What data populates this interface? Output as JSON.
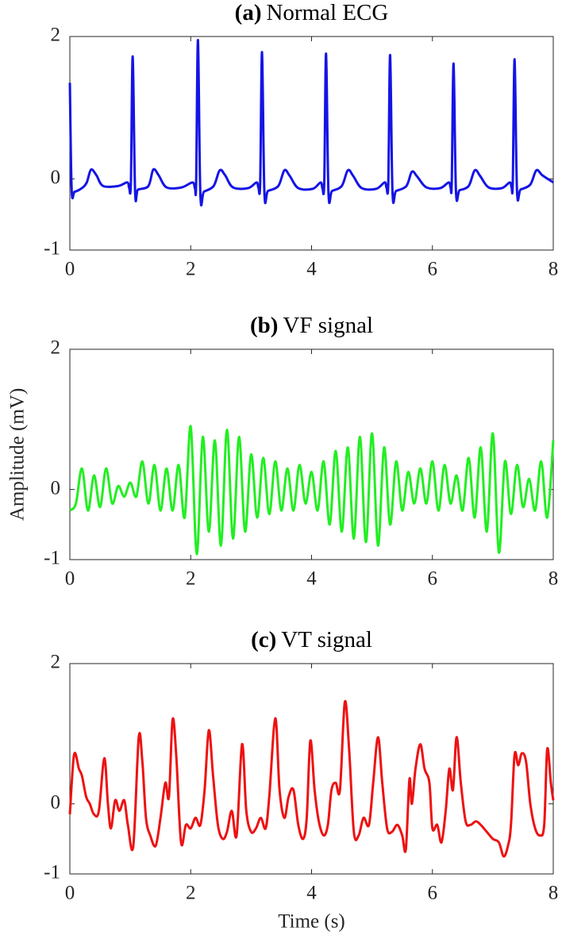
{
  "chart_data": [
    {
      "type": "line",
      "panel_label": "(a)",
      "title": "Normal ECG",
      "xlim": [
        0,
        8
      ],
      "xticks": [
        0,
        2,
        4,
        6,
        8
      ],
      "ylim": [
        -1,
        2
      ],
      "yticks": [
        -1,
        0,
        2
      ],
      "series": [
        {
          "name": "Normal ECG",
          "color": "#1414e6",
          "x": [
            0,
            0.03,
            0.08,
            0.2,
            0.28,
            0.35,
            0.44,
            0.55,
            0.8,
            0.95,
            0.98,
            1.01,
            1.04,
            1.08,
            1.13,
            1.3,
            1.38,
            1.47,
            1.6,
            1.85,
            2.03,
            2.07,
            2.09,
            2.12,
            2.16,
            2.22,
            2.38,
            2.48,
            2.57,
            2.7,
            2.95,
            3.09,
            3.12,
            3.15,
            3.18,
            3.22,
            3.28,
            3.45,
            3.55,
            3.64,
            3.78,
            4.02,
            4.15,
            4.18,
            4.21,
            4.24,
            4.28,
            4.34,
            4.5,
            4.6,
            4.69,
            4.83,
            5.07,
            5.21,
            5.24,
            5.27,
            5.3,
            5.34,
            5.4,
            5.57,
            5.66,
            5.75,
            5.9,
            6.13,
            6.27,
            6.3,
            6.32,
            6.35,
            6.39,
            6.45,
            6.6,
            6.7,
            6.79,
            6.93,
            7.15,
            7.28,
            7.31,
            7.33,
            7.36,
            7.4,
            7.46,
            7.62,
            7.72,
            7.82,
            8.0
          ],
          "values": [
            1.35,
            -0.15,
            -0.18,
            -0.13,
            -0.05,
            0.13,
            0.05,
            -0.1,
            -0.1,
            -0.05,
            -0.12,
            -0.05,
            1.72,
            -0.18,
            -0.15,
            -0.1,
            0.13,
            0.05,
            -0.12,
            -0.12,
            -0.05,
            -0.13,
            -0.05,
            1.95,
            -0.22,
            -0.18,
            -0.1,
            0.12,
            0.05,
            -0.12,
            -0.13,
            -0.05,
            -0.12,
            -0.05,
            1.78,
            -0.2,
            -0.17,
            -0.1,
            0.12,
            0.04,
            -0.13,
            -0.14,
            -0.05,
            -0.13,
            -0.05,
            1.76,
            -0.2,
            -0.17,
            -0.1,
            0.12,
            0.04,
            -0.13,
            -0.14,
            -0.05,
            -0.12,
            -0.05,
            1.74,
            -0.2,
            -0.17,
            -0.1,
            0.1,
            0.03,
            -0.12,
            -0.13,
            -0.05,
            -0.12,
            -0.05,
            1.62,
            -0.18,
            -0.16,
            -0.1,
            0.12,
            0.04,
            -0.12,
            -0.13,
            -0.05,
            -0.12,
            -0.05,
            1.68,
            -0.17,
            -0.15,
            -0.08,
            0.12,
            0.05,
            -0.05
          ]
        }
      ]
    },
    {
      "type": "line",
      "panel_label": "(b)",
      "title": "VF signal",
      "ylabel": "Amplitude (mV)",
      "xlim": [
        0,
        8
      ],
      "xticks": [
        0,
        2,
        4,
        6,
        8
      ],
      "ylim": [
        -1,
        2
      ],
      "yticks": [
        -1,
        0,
        2
      ],
      "series": [
        {
          "name": "VF signal",
          "color": "#22ee22",
          "x": [
            0,
            0.1,
            0.2,
            0.3,
            0.4,
            0.5,
            0.6,
            0.7,
            0.8,
            0.9,
            1.0,
            1.1,
            1.2,
            1.3,
            1.4,
            1.5,
            1.6,
            1.7,
            1.8,
            1.9,
            2.0,
            2.1,
            2.2,
            2.3,
            2.4,
            2.5,
            2.6,
            2.7,
            2.8,
            2.9,
            3.0,
            3.1,
            3.2,
            3.3,
            3.4,
            3.5,
            3.6,
            3.7,
            3.8,
            3.9,
            4.0,
            4.1,
            4.2,
            4.3,
            4.4,
            4.5,
            4.6,
            4.7,
            4.8,
            4.9,
            5.0,
            5.1,
            5.2,
            5.3,
            5.4,
            5.5,
            5.6,
            5.7,
            5.8,
            5.9,
            6.0,
            6.1,
            6.2,
            6.3,
            6.4,
            6.5,
            6.6,
            6.7,
            6.8,
            6.9,
            7.0,
            7.1,
            7.2,
            7.3,
            7.4,
            7.5,
            7.6,
            7.7,
            7.8,
            7.9,
            8.0
          ],
          "values": [
            -0.3,
            -0.2,
            0.3,
            -0.3,
            0.2,
            -0.25,
            0.3,
            -0.2,
            0.05,
            -0.1,
            0.1,
            -0.1,
            0.4,
            -0.2,
            0.35,
            -0.3,
            0.3,
            -0.3,
            0.35,
            -0.4,
            0.9,
            -0.92,
            0.75,
            -0.6,
            0.7,
            -0.8,
            0.85,
            -0.7,
            0.75,
            -0.6,
            0.5,
            -0.4,
            0.45,
            -0.35,
            0.4,
            -0.3,
            0.3,
            -0.3,
            0.35,
            -0.2,
            0.25,
            -0.3,
            0.4,
            -0.5,
            0.55,
            -0.6,
            0.6,
            -0.7,
            0.75,
            -0.75,
            0.8,
            -0.8,
            0.6,
            -0.5,
            0.4,
            -0.3,
            0.25,
            -0.2,
            0.3,
            -0.2,
            0.4,
            -0.3,
            0.35,
            -0.2,
            0.2,
            -0.3,
            0.45,
            -0.4,
            0.6,
            -0.6,
            0.8,
            -0.9,
            0.4,
            -0.35,
            0.35,
            -0.25,
            0.15,
            -0.3,
            0.4,
            -0.4,
            0.7
          ]
        }
      ]
    },
    {
      "type": "line",
      "panel_label": "(c)",
      "title": "VT signal",
      "xlabel": "Time (s)",
      "xlim": [
        0,
        8
      ],
      "xticks": [
        0,
        2,
        4,
        6,
        8
      ],
      "ylim": [
        -1,
        2
      ],
      "yticks": [
        -1,
        0,
        2
      ],
      "series": [
        {
          "name": "VT signal",
          "color": "#ee1111",
          "x": [
            0,
            0.07,
            0.15,
            0.2,
            0.27,
            0.33,
            0.4,
            0.48,
            0.57,
            0.63,
            0.68,
            0.75,
            0.82,
            0.9,
            0.96,
            1.05,
            1.14,
            1.2,
            1.26,
            1.33,
            1.42,
            1.5,
            1.58,
            1.64,
            1.7,
            1.76,
            1.84,
            1.92,
            2.0,
            2.08,
            2.16,
            2.23,
            2.3,
            2.37,
            2.45,
            2.53,
            2.6,
            2.68,
            2.76,
            2.85,
            2.92,
            3.0,
            3.08,
            3.16,
            3.24,
            3.3,
            3.4,
            3.47,
            3.55,
            3.62,
            3.7,
            3.78,
            3.86,
            3.92,
            3.98,
            4.05,
            4.12,
            4.2,
            4.27,
            4.33,
            4.4,
            4.47,
            4.55,
            4.62,
            4.7,
            4.78,
            4.86,
            4.95,
            5.02,
            5.1,
            5.17,
            5.25,
            5.33,
            5.42,
            5.5,
            5.56,
            5.62,
            5.66,
            5.72,
            5.8,
            5.87,
            5.95,
            6.0,
            6.08,
            6.15,
            6.22,
            6.28,
            6.34,
            6.4,
            6.47,
            6.55,
            6.63,
            6.72,
            6.8,
            6.9,
            7.0,
            7.1,
            7.18,
            7.25,
            7.3,
            7.36,
            7.42,
            7.48,
            7.55,
            7.62,
            7.7,
            7.78,
            7.85,
            7.9,
            7.96,
            8.0
          ],
          "values": [
            -0.15,
            0.7,
            0.5,
            0.4,
            0.1,
            0.0,
            -0.15,
            -0.1,
            0.65,
            0.0,
            -0.35,
            0.05,
            -0.1,
            0.05,
            -0.3,
            -0.6,
            0.95,
            0.6,
            -0.2,
            -0.45,
            -0.6,
            -0.2,
            0.3,
            0.1,
            1.2,
            0.7,
            -0.55,
            -0.3,
            -0.35,
            -0.2,
            -0.3,
            0.2,
            1.05,
            0.4,
            -0.3,
            -0.5,
            -0.4,
            -0.1,
            -0.45,
            0.85,
            -0.1,
            -0.4,
            -0.35,
            -0.2,
            -0.35,
            0.1,
            1.22,
            0.2,
            -0.2,
            0.1,
            0.2,
            -0.3,
            -0.5,
            -0.2,
            0.9,
            0.2,
            -0.25,
            -0.45,
            -0.3,
            0.2,
            0.3,
            0.2,
            1.45,
            0.8,
            -0.4,
            -0.45,
            -0.2,
            -0.3,
            0.3,
            0.95,
            0.3,
            -0.35,
            -0.4,
            -0.3,
            -0.45,
            -0.65,
            0.35,
            0.0,
            0.5,
            0.85,
            0.5,
            0.3,
            -0.35,
            -0.3,
            -0.55,
            -0.1,
            0.5,
            0.2,
            0.95,
            0.3,
            -0.25,
            -0.3,
            -0.25,
            -0.3,
            -0.4,
            -0.5,
            -0.55,
            -0.75,
            -0.6,
            -0.3,
            0.7,
            0.55,
            0.72,
            0.6,
            0.0,
            -0.35,
            -0.45,
            -0.3,
            0.78,
            0.3,
            0.05
          ]
        }
      ]
    }
  ]
}
